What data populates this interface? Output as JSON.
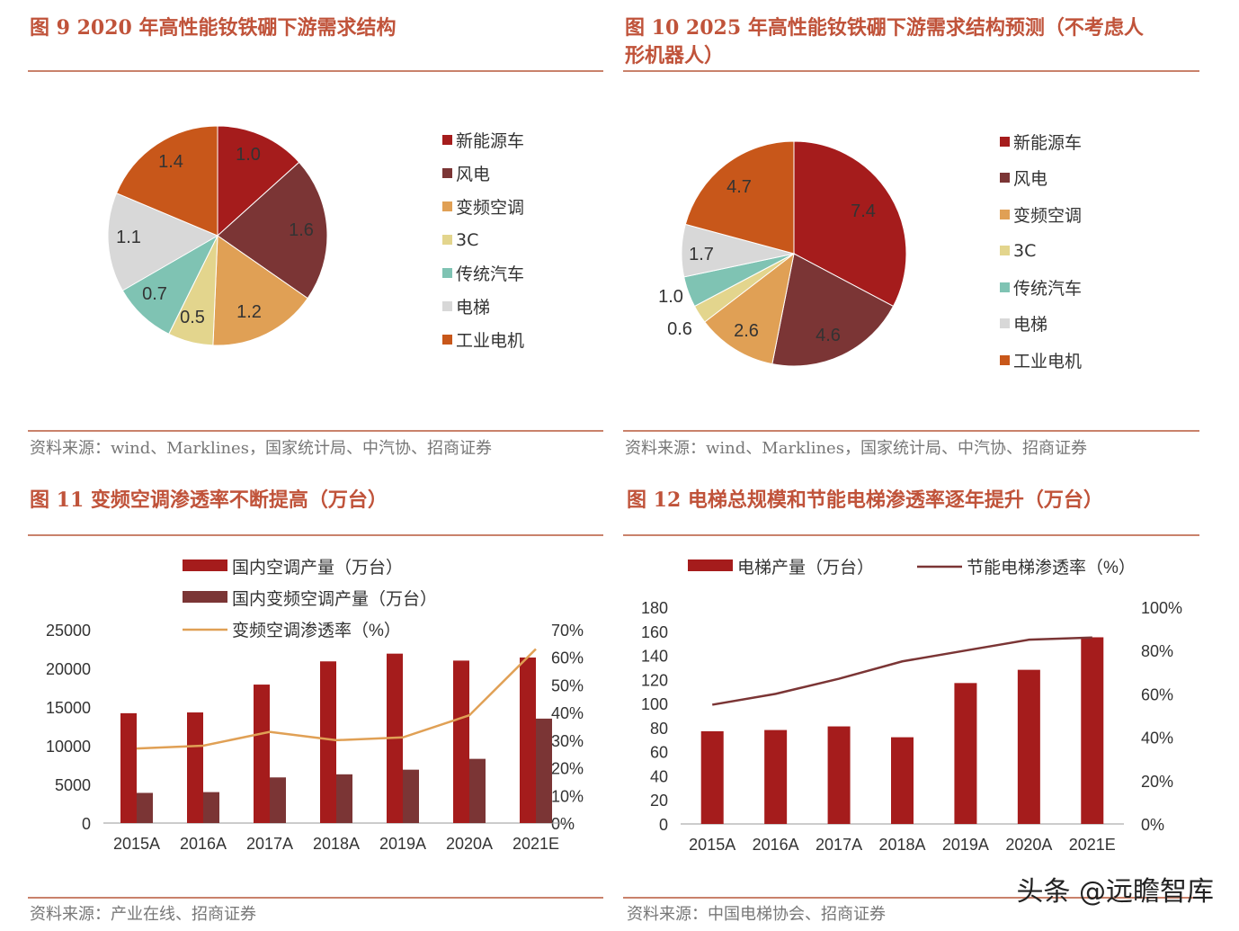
{
  "panels": {
    "fig9": {
      "title": "图 9 2020 年高性能钕铁硼下游需求结构",
      "source": "资料来源：wind、Marklines，国家统计局、中汽协、招商证券"
    },
    "fig10": {
      "title_line1": "图 10 2025 年高性能钕铁硼下游需求结构预测（不考虑人",
      "title_line2": "形机器人）",
      "source": "资料来源：wind、Marklines，国家统计局、中汽协、招商证券"
    },
    "fig11": {
      "title": "图 11  变频空调渗透率不断提高（万台）",
      "source": "资料来源：产业在线、招商证券"
    },
    "fig12": {
      "title": "图 12  电梯总规模和节能电梯渗透率逐年提升（万台）",
      "source": "资料来源：中国电梯协会、招商证券"
    }
  },
  "watermark": "头条 @远瞻智库",
  "colors": {
    "title": "#c0533a",
    "rule": "#c9826b",
    "new_energy": "#a51c1c",
    "wind": "#7b3535",
    "inverter_ac": "#e0a055",
    "c3": "#e3d58d",
    "traditional_auto": "#7fc3b3",
    "elevator": "#d8d8d8",
    "industrial_motor": "#c8571a",
    "bar_primary": "#a51c1c",
    "bar_secondary": "#7b3535",
    "line_ac": "#e0a055",
    "line_elevator": "#7b3535"
  },
  "chart_data": [
    {
      "id": "fig9",
      "type": "pie",
      "labels": [
        "新能源车",
        "风电",
        "变频空调",
        "3C",
        "传统汽车",
        "电梯",
        "工业电机"
      ],
      "values": [
        1.0,
        1.6,
        1.2,
        0.5,
        0.7,
        1.1,
        1.4
      ],
      "value_labels": [
        "1.0",
        "1.6",
        "1.2",
        "0.5",
        "0.7",
        "1.1",
        "1.4"
      ],
      "legend": "right"
    },
    {
      "id": "fig10",
      "type": "pie",
      "labels": [
        "新能源车",
        "风电",
        "变频空调",
        "3C",
        "传统汽车",
        "电梯",
        "工业电机"
      ],
      "values": [
        7.4,
        4.6,
        2.6,
        0.6,
        1.0,
        1.7,
        4.7
      ],
      "value_labels": [
        "7.4",
        "4.6",
        "2.6",
        "0.6",
        "1.0",
        "1.7",
        "4.7"
      ],
      "legend": "right"
    },
    {
      "id": "fig11",
      "type": "bar",
      "categories": [
        "2015A",
        "2016A",
        "2017A",
        "2018A",
        "2019A",
        "2020A",
        "2021E"
      ],
      "series": [
        {
          "name": "国内空调产量（万台）",
          "kind": "bar",
          "axis": "left",
          "values": [
            14200,
            14300,
            17900,
            20900,
            21900,
            21000,
            21400
          ]
        },
        {
          "name": "国内变频空调产量（万台）",
          "kind": "bar",
          "axis": "left",
          "values": [
            3900,
            4000,
            5900,
            6300,
            6900,
            8300,
            13500
          ]
        },
        {
          "name": "变频空调渗透率（%）",
          "kind": "line",
          "axis": "right",
          "values": [
            27,
            28,
            33,
            30,
            31,
            39,
            63
          ]
        }
      ],
      "yticks_left": [
        "0",
        "5000",
        "10000",
        "15000",
        "20000",
        "25000"
      ],
      "ylim_left": [
        0,
        25000
      ],
      "yticks_right": [
        "0%",
        "10%",
        "20%",
        "30%",
        "40%",
        "50%",
        "60%",
        "70%"
      ],
      "ylim_right": [
        0,
        70
      ],
      "legend": "top"
    },
    {
      "id": "fig12",
      "type": "bar",
      "categories": [
        "2015A",
        "2016A",
        "2017A",
        "2018A",
        "2019A",
        "2020A",
        "2021E"
      ],
      "series": [
        {
          "name": "电梯产量（万台）",
          "kind": "bar",
          "axis": "left",
          "values": [
            77,
            78,
            81,
            72,
            117,
            128,
            155
          ]
        },
        {
          "name": "节能电梯渗透率（%）",
          "kind": "line",
          "axis": "right",
          "values": [
            55,
            60,
            67,
            75,
            80,
            85,
            86
          ]
        }
      ],
      "yticks_left": [
        "0",
        "20",
        "40",
        "60",
        "80",
        "100",
        "120",
        "140",
        "160",
        "180"
      ],
      "ylim_left": [
        0,
        180
      ],
      "yticks_right": [
        "0%",
        "20%",
        "40%",
        "60%",
        "80%",
        "100%"
      ],
      "ylim_right": [
        0,
        100
      ],
      "legend": "top"
    }
  ]
}
